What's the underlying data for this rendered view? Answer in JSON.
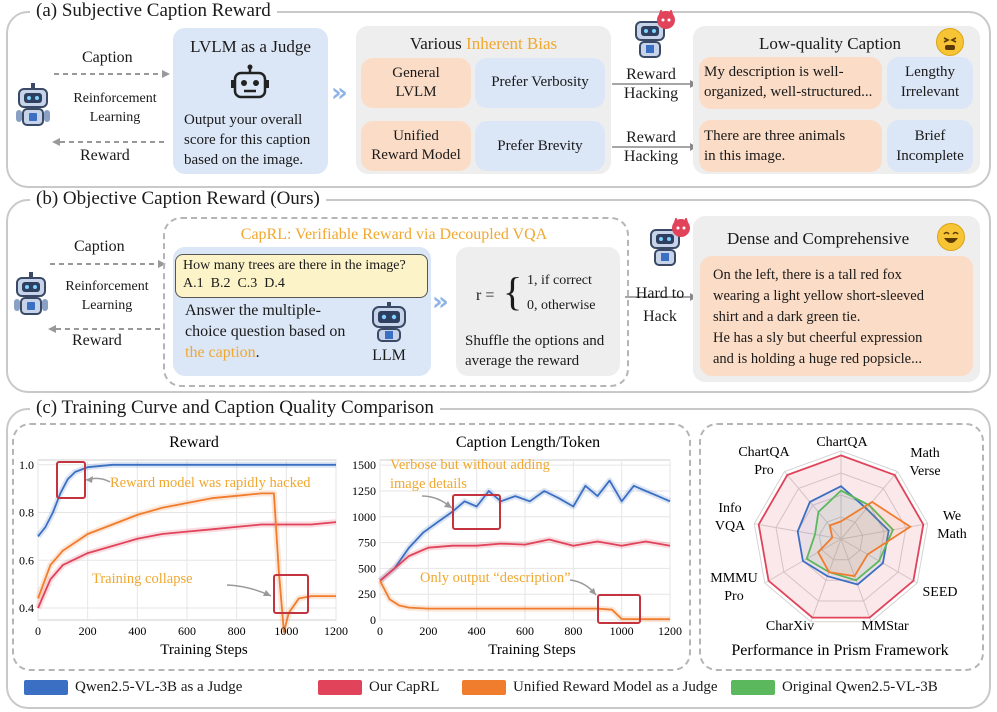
{
  "panel_a": {
    "title": "(a) Subjective Caption Reward",
    "caption_label": "Caption",
    "rl_label_1": "Reinforcement",
    "rl_label_2": "Learning",
    "reward_label": "Reward",
    "judge_title": "LVLM as a Judge",
    "judge_text_1": "Output your overall",
    "judge_text_2": "score for this caption",
    "judge_text_3": "based on the image.",
    "bias_title_prefix": "Various ",
    "bias_title_highlight": "Inherent Bias",
    "row1_model_1": "General",
    "row1_model_2": "LVLM",
    "row1_pref": "Prefer Verbosity",
    "row2_model_1": "Unified",
    "row2_model_2": "Reward Model",
    "row2_pref": "Prefer Brevity",
    "hack_1_a": "Reward",
    "hack_1_b": "Hacking",
    "hack_2_a": "Reward",
    "hack_2_b": "Hacking",
    "lq_title": "Low-quality Caption",
    "lq1_text_1": "My description is well-",
    "lq1_text_2": "organized, well-structured...",
    "lq1_tag_1": "Lengthy",
    "lq1_tag_2": "Irrelevant",
    "lq2_text_1": "There are three animals",
    "lq2_text_2": "in this image.",
    "lq2_tag_1": "Brief",
    "lq2_tag_2": "Incomplete"
  },
  "panel_b": {
    "title": "(b) Objective Caption Reward (Ours)",
    "caption_label": "Caption",
    "rl_label_1": "Reinforcement",
    "rl_label_2": "Learning",
    "reward_label": "Reward",
    "capl_title": "CapRL: Verifiable Reward via Decoupled VQA",
    "question": "How many trees are there in the image?",
    "options": "A.1  B.2  C.3  D.4",
    "answer_1": "Answer the multiple-",
    "answer_2": "choice question based on",
    "answer_3": "the caption",
    "answer_3_tail": ".",
    "llm_label": "LLM",
    "formula_r": "r =",
    "formula_1": "1, if correct",
    "formula_0": "0, otherwise",
    "shuffle_1": "Shuffle the options and",
    "shuffle_2": "average the reward",
    "hard_1": "Hard to",
    "hard_2": "Hack",
    "dense_title": "Dense and Comprehensive",
    "dense_1": "On the left, there is a tall red fox",
    "dense_2": "wearing a light yellow short-sleeved",
    "dense_3": "shirt and a dark green tie.",
    "dense_4": "He has a sly but cheerful expression",
    "dense_5": "and is holding a huge red popsicle..."
  },
  "panel_c": {
    "title": "(c) Training Curve and Caption Quality Comparison",
    "reward_title": "Reward",
    "length_title": "Caption Length/Token",
    "radar_title": "Performance in Prism Framework",
    "x_label": "Training Steps",
    "ann_hacked": "Reward model was rapidly hacked",
    "ann_collapse": "Training collapse",
    "ann_verbose_1": "Verbose but without adding",
    "ann_verbose_2": "image details",
    "ann_only": "Only output “description”"
  },
  "colors": {
    "qwen_judge": "#3b6fc4",
    "caprl": "#e0435a",
    "unified": "#f07c2e",
    "original": "#5cb85c",
    "highlight": "#f0a830"
  },
  "legend": [
    {
      "label": "Qwen2.5-VL-3B as a Judge",
      "color": "#3b6fc4"
    },
    {
      "label": "Our CapRL",
      "color": "#e0435a"
    },
    {
      "label": "Unified Reward Model as a Judge",
      "color": "#f07c2e"
    },
    {
      "label": "Original Qwen2.5-VL-3B",
      "color": "#5cb85c"
    }
  ],
  "chart_data": [
    {
      "type": "line",
      "title": "Reward",
      "xlabel": "Training Steps",
      "ylabel": "",
      "xlim": [
        0,
        1200
      ],
      "ylim": [
        0.35,
        1.02
      ],
      "x_ticks": [
        "0",
        "200",
        "400",
        "600",
        "800",
        "1000",
        "1200"
      ],
      "y_ticks": [
        "0.4",
        "0.6",
        "0.8",
        "1.0"
      ],
      "grid": true,
      "series": [
        {
          "name": "Qwen2.5-VL-3B as a Judge",
          "x": [
            0,
            30,
            60,
            90,
            120,
            150,
            200,
            300,
            500,
            800,
            1200
          ],
          "values": [
            0.7,
            0.74,
            0.8,
            0.88,
            0.94,
            0.97,
            0.99,
            1.0,
            1.0,
            1.0,
            1.0
          ]
        },
        {
          "name": "Our CapRL",
          "x": [
            0,
            50,
            100,
            200,
            300,
            400,
            500,
            600,
            700,
            800,
            900,
            1000,
            1100,
            1200
          ],
          "values": [
            0.4,
            0.52,
            0.58,
            0.63,
            0.66,
            0.69,
            0.71,
            0.72,
            0.73,
            0.74,
            0.75,
            0.75,
            0.75,
            0.76
          ]
        },
        {
          "name": "Unified Reward Model as a Judge",
          "x": [
            0,
            50,
            100,
            200,
            300,
            400,
            500,
            600,
            700,
            800,
            900,
            950,
            970,
            990,
            1010,
            1050,
            1100,
            1200
          ],
          "values": [
            0.44,
            0.58,
            0.64,
            0.71,
            0.75,
            0.79,
            0.82,
            0.84,
            0.86,
            0.87,
            0.88,
            0.88,
            0.55,
            0.3,
            0.38,
            0.44,
            0.45,
            0.45
          ]
        }
      ]
    },
    {
      "type": "line",
      "title": "Caption Length/Token",
      "xlabel": "Training Steps",
      "ylabel": "",
      "xlim": [
        0,
        1200
      ],
      "ylim": [
        0,
        1550
      ],
      "x_ticks": [
        "0",
        "200",
        "400",
        "600",
        "800",
        "1000",
        "1200"
      ],
      "y_ticks": [
        "0",
        "250",
        "500",
        "750",
        "1000",
        "1250",
        "1500"
      ],
      "grid": true,
      "series": [
        {
          "name": "Qwen2.5-VL-3B as a Judge",
          "x": [
            0,
            60,
            120,
            180,
            240,
            300,
            350,
            400,
            450,
            500,
            560,
            620,
            680,
            740,
            800,
            850,
            900,
            950,
            1000,
            1050,
            1100,
            1150,
            1200
          ],
          "values": [
            380,
            500,
            700,
            850,
            950,
            1050,
            1150,
            1100,
            1250,
            1150,
            1200,
            1150,
            1250,
            1180,
            1100,
            1300,
            1200,
            1350,
            1150,
            1300,
            1250,
            1200,
            1150
          ]
        },
        {
          "name": "Our CapRL",
          "x": [
            0,
            60,
            120,
            200,
            300,
            400,
            500,
            600,
            700,
            800,
            900,
            1000,
            1100,
            1200
          ],
          "values": [
            380,
            500,
            620,
            700,
            720,
            720,
            740,
            730,
            780,
            720,
            760,
            720,
            760,
            720
          ]
        },
        {
          "name": "Unified Reward Model as a Judge",
          "x": [
            0,
            40,
            80,
            120,
            200,
            400,
            600,
            800,
            900,
            960,
            1000,
            1100,
            1200
          ],
          "values": [
            380,
            200,
            140,
            120,
            110,
            110,
            110,
            110,
            110,
            100,
            10,
            8,
            8
          ]
        }
      ]
    },
    {
      "type": "radar",
      "title": "Performance in Prism Framework",
      "axes": [
        "ChartQA",
        "Math Verse",
        "We Math",
        "SEED",
        "MMStar",
        "CharXiv",
        "MMMU Pro",
        "Info VQA",
        "ChartQA Pro"
      ],
      "series": [
        {
          "name": "Qwen2.5-VL-3B as a Judge",
          "values": [
            0.6,
            0.45,
            0.55,
            0.55,
            0.55,
            0.45,
            0.5,
            0.5,
            0.55
          ]
        },
        {
          "name": "Our CapRL",
          "values": [
            0.95,
            0.95,
            0.95,
            0.95,
            0.95,
            0.95,
            0.95,
            0.95,
            0.95
          ]
        },
        {
          "name": "Unified Reward Model as a Judge",
          "values": [
            0.2,
            0.55,
            0.8,
            0.35,
            0.45,
            0.4,
            0.3,
            0.1,
            0.2
          ]
        },
        {
          "name": "Original Qwen2.5-VL-3B",
          "values": [
            0.55,
            0.5,
            0.6,
            0.5,
            0.5,
            0.4,
            0.45,
            0.3,
            0.4
          ]
        }
      ]
    }
  ]
}
